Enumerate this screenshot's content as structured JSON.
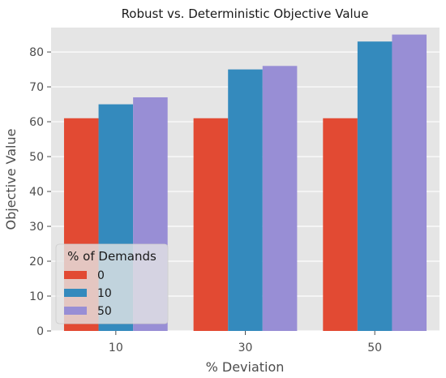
{
  "chart_data": {
    "type": "bar",
    "title": "Robust vs. Deterministic Objective Value",
    "xlabel": "% Deviation",
    "ylabel": "Objective Value",
    "categories": [
      "10",
      "30",
      "50"
    ],
    "series": [
      {
        "name": "0",
        "color": "#e24a33",
        "values": [
          61,
          61,
          61
        ]
      },
      {
        "name": "10",
        "color": "#348abd",
        "values": [
          65,
          75,
          83
        ]
      },
      {
        "name": "50",
        "color": "#988ed5",
        "values": [
          67,
          76,
          85
        ]
      }
    ],
    "ylim": [
      0,
      87
    ],
    "yticks": [
      "0",
      "10",
      "20",
      "30",
      "40",
      "50",
      "60",
      "70",
      "80"
    ],
    "grid": true,
    "background": "#e5e5e5",
    "legend": {
      "title": "% of Demands",
      "placement": "lower-left"
    }
  }
}
